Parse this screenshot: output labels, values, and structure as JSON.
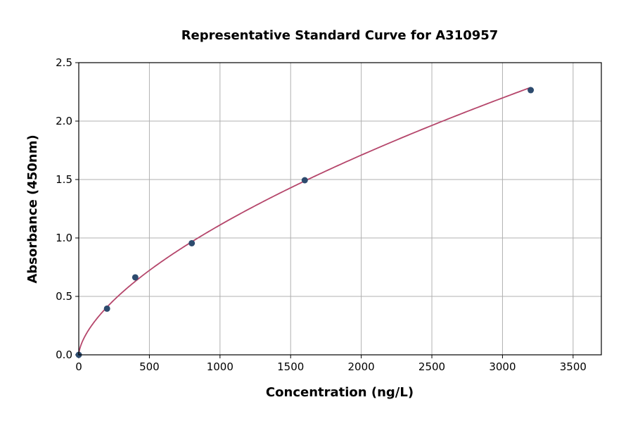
{
  "chart_data": {
    "type": "scatter",
    "title": "Representative Standard Curve for A310957",
    "xlabel": "Concentration (ng/L)",
    "ylabel": "Absorbance (450nm)",
    "xlim": [
      0,
      3700
    ],
    "ylim": [
      0,
      2.5
    ],
    "xticks": [
      "0",
      "500",
      "1000",
      "1500",
      "2000",
      "2500",
      "3000",
      "3500"
    ],
    "yticks": [
      "0.0",
      "0.5",
      "1.0",
      "1.5",
      "2.0",
      "2.5"
    ],
    "grid": true,
    "points": {
      "x": [
        0,
        200,
        400,
        800,
        1600,
        3200
      ],
      "y": [
        0.0,
        0.395,
        0.663,
        0.955,
        1.494,
        2.265
      ]
    },
    "fit_curve": "power",
    "colors": {
      "points": "#2d4b6e",
      "curve": "#b5466b",
      "grid": "#b0b0b0"
    }
  }
}
